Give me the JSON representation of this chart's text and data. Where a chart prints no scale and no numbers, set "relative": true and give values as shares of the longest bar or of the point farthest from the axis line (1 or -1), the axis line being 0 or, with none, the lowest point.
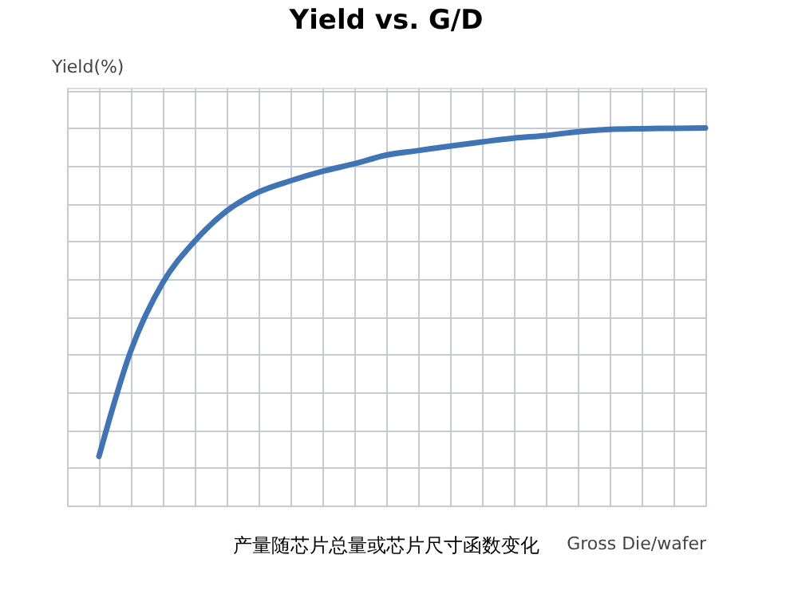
{
  "chart_data": {
    "type": "line",
    "title": "Yield vs. G/D",
    "ylabel": "Yield(%)",
    "xlabel": "Gross Die/wafer",
    "relative": true,
    "grid": true,
    "marker": "none",
    "line_style": "solid",
    "categories": [
      null,
      null,
      null,
      null,
      null,
      null,
      null,
      null,
      null,
      null,
      null,
      null,
      null,
      null,
      null,
      null,
      null,
      null,
      null,
      null,
      null
    ],
    "series": [
      {
        "color": "#3f74b5",
        "values": [
          null,
          0.13,
          0.41,
          0.59,
          0.7,
          0.78,
          0.83,
          0.86,
          0.885,
          0.905,
          0.928,
          0.94,
          0.952,
          0.963,
          0.973,
          0.98,
          0.99,
          0.996,
          0.998,
          0.999,
          1.0
        ]
      }
    ],
    "annotations": [
      "产量随芯片总量或芯片尺寸函数变化"
    ]
  }
}
